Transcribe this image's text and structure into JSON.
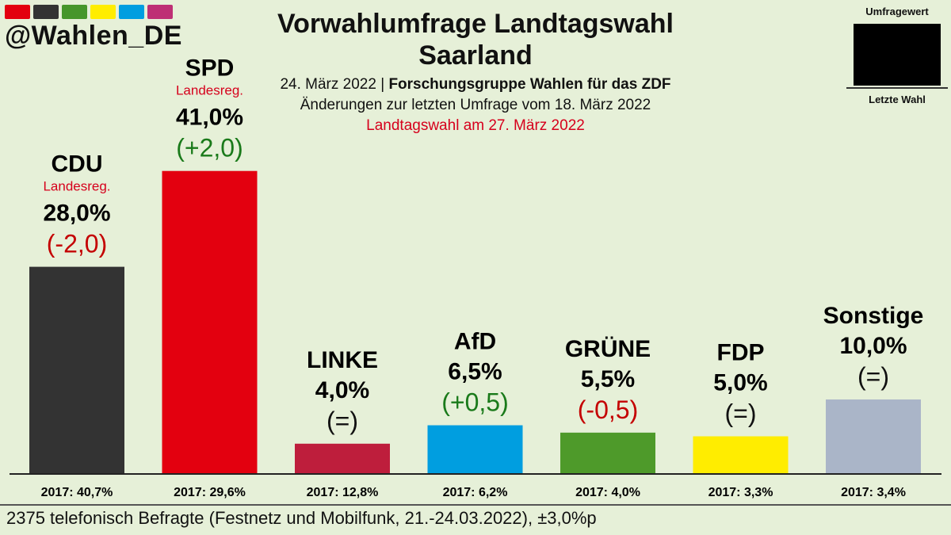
{
  "header": {
    "handle": "@Wahlen_DE",
    "title_line1": "Vorwahlumfrage Landtagswahl",
    "title_line2": "Saarland",
    "date": "24. März 2022",
    "separator": " | ",
    "institute": "Forschungsgruppe Wahlen für das ZDF",
    "changes_note": "Änderungen zur letzten Umfrage vom 18. März 2022",
    "election_note": "Landtagswahl am 27. März 2022",
    "swatch_colors": [
      "#e3000f",
      "#333333",
      "#46962b",
      "#ffed00",
      "#009ee0",
      "#be3075"
    ]
  },
  "legend": {
    "top_label": "Umfragewert",
    "bottom_label": "Letzte Wahl"
  },
  "footer": {
    "text": "2375 telefonisch Befragte (Festnetz und Mobilfunk, 21.-24.03.2022), ±3,0%p"
  },
  "chart_data": {
    "type": "bar",
    "categories": [
      "CDU",
      "SPD",
      "LINKE",
      "AfD",
      "GRÜNE",
      "FDP",
      "Sonstige"
    ],
    "values": [
      28.0,
      41.0,
      4.0,
      6.5,
      5.5,
      5.0,
      10.0
    ],
    "value_labels": [
      "28,0%",
      "41,0%",
      "4,0%",
      "6,5%",
      "5,5%",
      "5,0%",
      "10,0%"
    ],
    "changes": [
      "(-2,0)",
      "(+2,0)",
      "(=)",
      "(+0,5)",
      "(-0,5)",
      "(=)",
      "(=)"
    ],
    "change_direction": [
      "down",
      "up",
      "same",
      "up",
      "down",
      "same",
      "same"
    ],
    "government_labels": [
      "Landesreg.",
      "Landesreg.",
      "",
      "",
      "",
      "",
      ""
    ],
    "previous_labels": [
      "2017: 40,7%",
      "2017: 29,6%",
      "2017: 12,8%",
      "2017: 6,2%",
      "2017: 4,0%",
      "2017: 3,3%",
      "2017: 3,4%"
    ],
    "colors": [
      "#333333",
      "#e3000f",
      "#be1e3c",
      "#009ee0",
      "#4e9a2a",
      "#ffed00",
      "#aab5c8"
    ],
    "change_colors": {
      "up": "#1a7a1a",
      "down": "#c40000",
      "same": "#111111"
    },
    "ylim": [
      0,
      45
    ],
    "grid": false,
    "legend_position": "top-right"
  }
}
